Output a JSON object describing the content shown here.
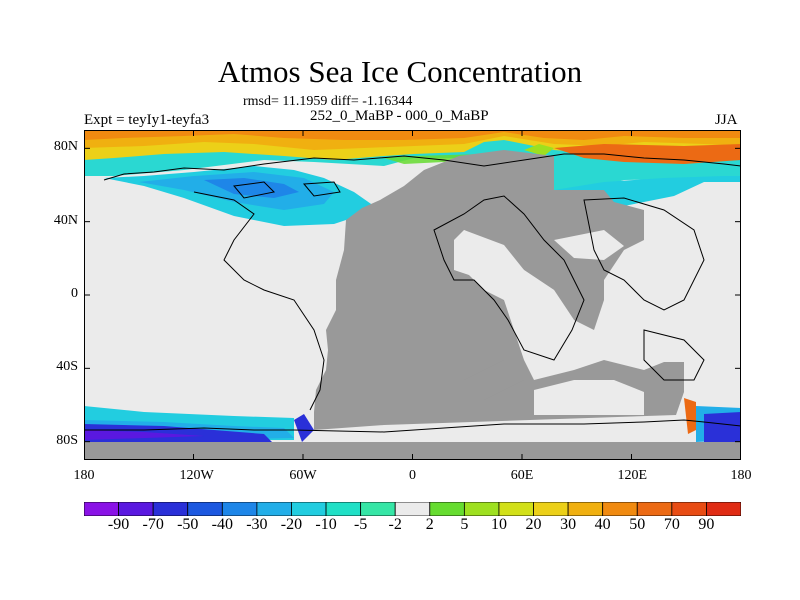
{
  "title": "Atmos Sea Ice Concentration",
  "stats": "rmsd= 11.1959 diff= -1.16344",
  "experiment": "Expt = teyIy1-teyfa3",
  "comparison": "252_0_MaBP - 000_0_MaBP",
  "season": "JJA",
  "map": {
    "x_ticks": [
      "180",
      "120W",
      "60W",
      "0",
      "60E",
      "120E",
      "180"
    ],
    "y_ticks": [
      "80N",
      "40N",
      "0",
      "40S",
      "80S"
    ],
    "land_color": "#999999",
    "ocean_color": "#ebebeb"
  },
  "colorbar": {
    "labels": [
      "-90",
      "-70",
      "-50",
      "-40",
      "-30",
      "-20",
      "-10",
      "-5",
      "-2",
      "2",
      "5",
      "10",
      "20",
      "30",
      "40",
      "50",
      "70",
      "90"
    ],
    "colors": [
      "#8a12e6",
      "#5a18e0",
      "#2a30d8",
      "#1c58e0",
      "#1e86e8",
      "#22aee8",
      "#22cde0",
      "#20e0c6",
      "#36e6a6",
      "#ebebeb",
      "#66dc30",
      "#9ee020",
      "#d2e018",
      "#ecd018",
      "#f0b010",
      "#f08a10",
      "#ec6a14",
      "#e84c14",
      "#e02c14"
    ]
  }
}
